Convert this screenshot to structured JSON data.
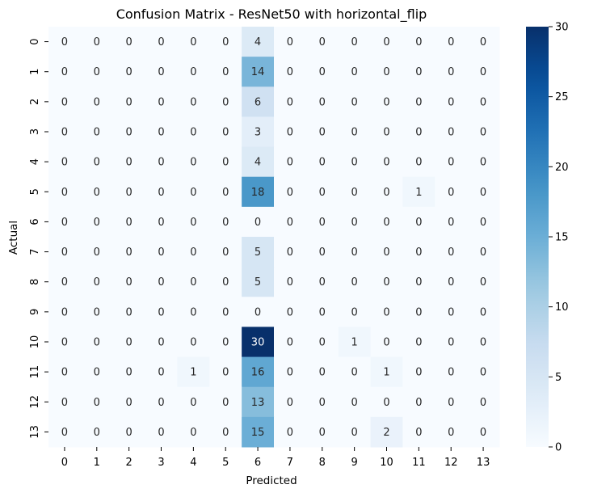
{
  "chart_data": {
    "type": "heatmap",
    "title": "Confusion Matrix - ResNet50 with horizontal_flip",
    "xlabel": "Predicted",
    "ylabel": "Actual",
    "x_categories": [
      "0",
      "1",
      "2",
      "3",
      "4",
      "5",
      "6",
      "7",
      "8",
      "9",
      "10",
      "11",
      "12",
      "13"
    ],
    "y_categories": [
      "0",
      "1",
      "2",
      "3",
      "4",
      "5",
      "6",
      "7",
      "8",
      "9",
      "10",
      "11",
      "12",
      "13"
    ],
    "values": [
      [
        0,
        0,
        0,
        0,
        0,
        0,
        4,
        0,
        0,
        0,
        0,
        0,
        0,
        0
      ],
      [
        0,
        0,
        0,
        0,
        0,
        0,
        14,
        0,
        0,
        0,
        0,
        0,
        0,
        0
      ],
      [
        0,
        0,
        0,
        0,
        0,
        0,
        6,
        0,
        0,
        0,
        0,
        0,
        0,
        0
      ],
      [
        0,
        0,
        0,
        0,
        0,
        0,
        3,
        0,
        0,
        0,
        0,
        0,
        0,
        0
      ],
      [
        0,
        0,
        0,
        0,
        0,
        0,
        4,
        0,
        0,
        0,
        0,
        0,
        0,
        0
      ],
      [
        0,
        0,
        0,
        0,
        0,
        0,
        18,
        0,
        0,
        0,
        0,
        1,
        0,
        0
      ],
      [
        0,
        0,
        0,
        0,
        0,
        0,
        0,
        0,
        0,
        0,
        0,
        0,
        0,
        0
      ],
      [
        0,
        0,
        0,
        0,
        0,
        0,
        5,
        0,
        0,
        0,
        0,
        0,
        0,
        0
      ],
      [
        0,
        0,
        0,
        0,
        0,
        0,
        5,
        0,
        0,
        0,
        0,
        0,
        0,
        0
      ],
      [
        0,
        0,
        0,
        0,
        0,
        0,
        0,
        0,
        0,
        0,
        0,
        0,
        0,
        0
      ],
      [
        0,
        0,
        0,
        0,
        0,
        0,
        30,
        0,
        0,
        1,
        0,
        0,
        0,
        0
      ],
      [
        0,
        0,
        0,
        0,
        1,
        0,
        16,
        0,
        0,
        0,
        1,
        0,
        0,
        0
      ],
      [
        0,
        0,
        0,
        0,
        0,
        0,
        13,
        0,
        0,
        0,
        0,
        0,
        0,
        0
      ],
      [
        0,
        0,
        0,
        0,
        0,
        0,
        15,
        0,
        0,
        0,
        2,
        0,
        0,
        0
      ]
    ],
    "colormap": "Blues",
    "colorbar": {
      "min": 0,
      "max": 30,
      "ticks": [
        "0",
        "5",
        "10",
        "15",
        "20",
        "25",
        "30"
      ]
    },
    "grid": false,
    "legend": "colorbar-right"
  }
}
